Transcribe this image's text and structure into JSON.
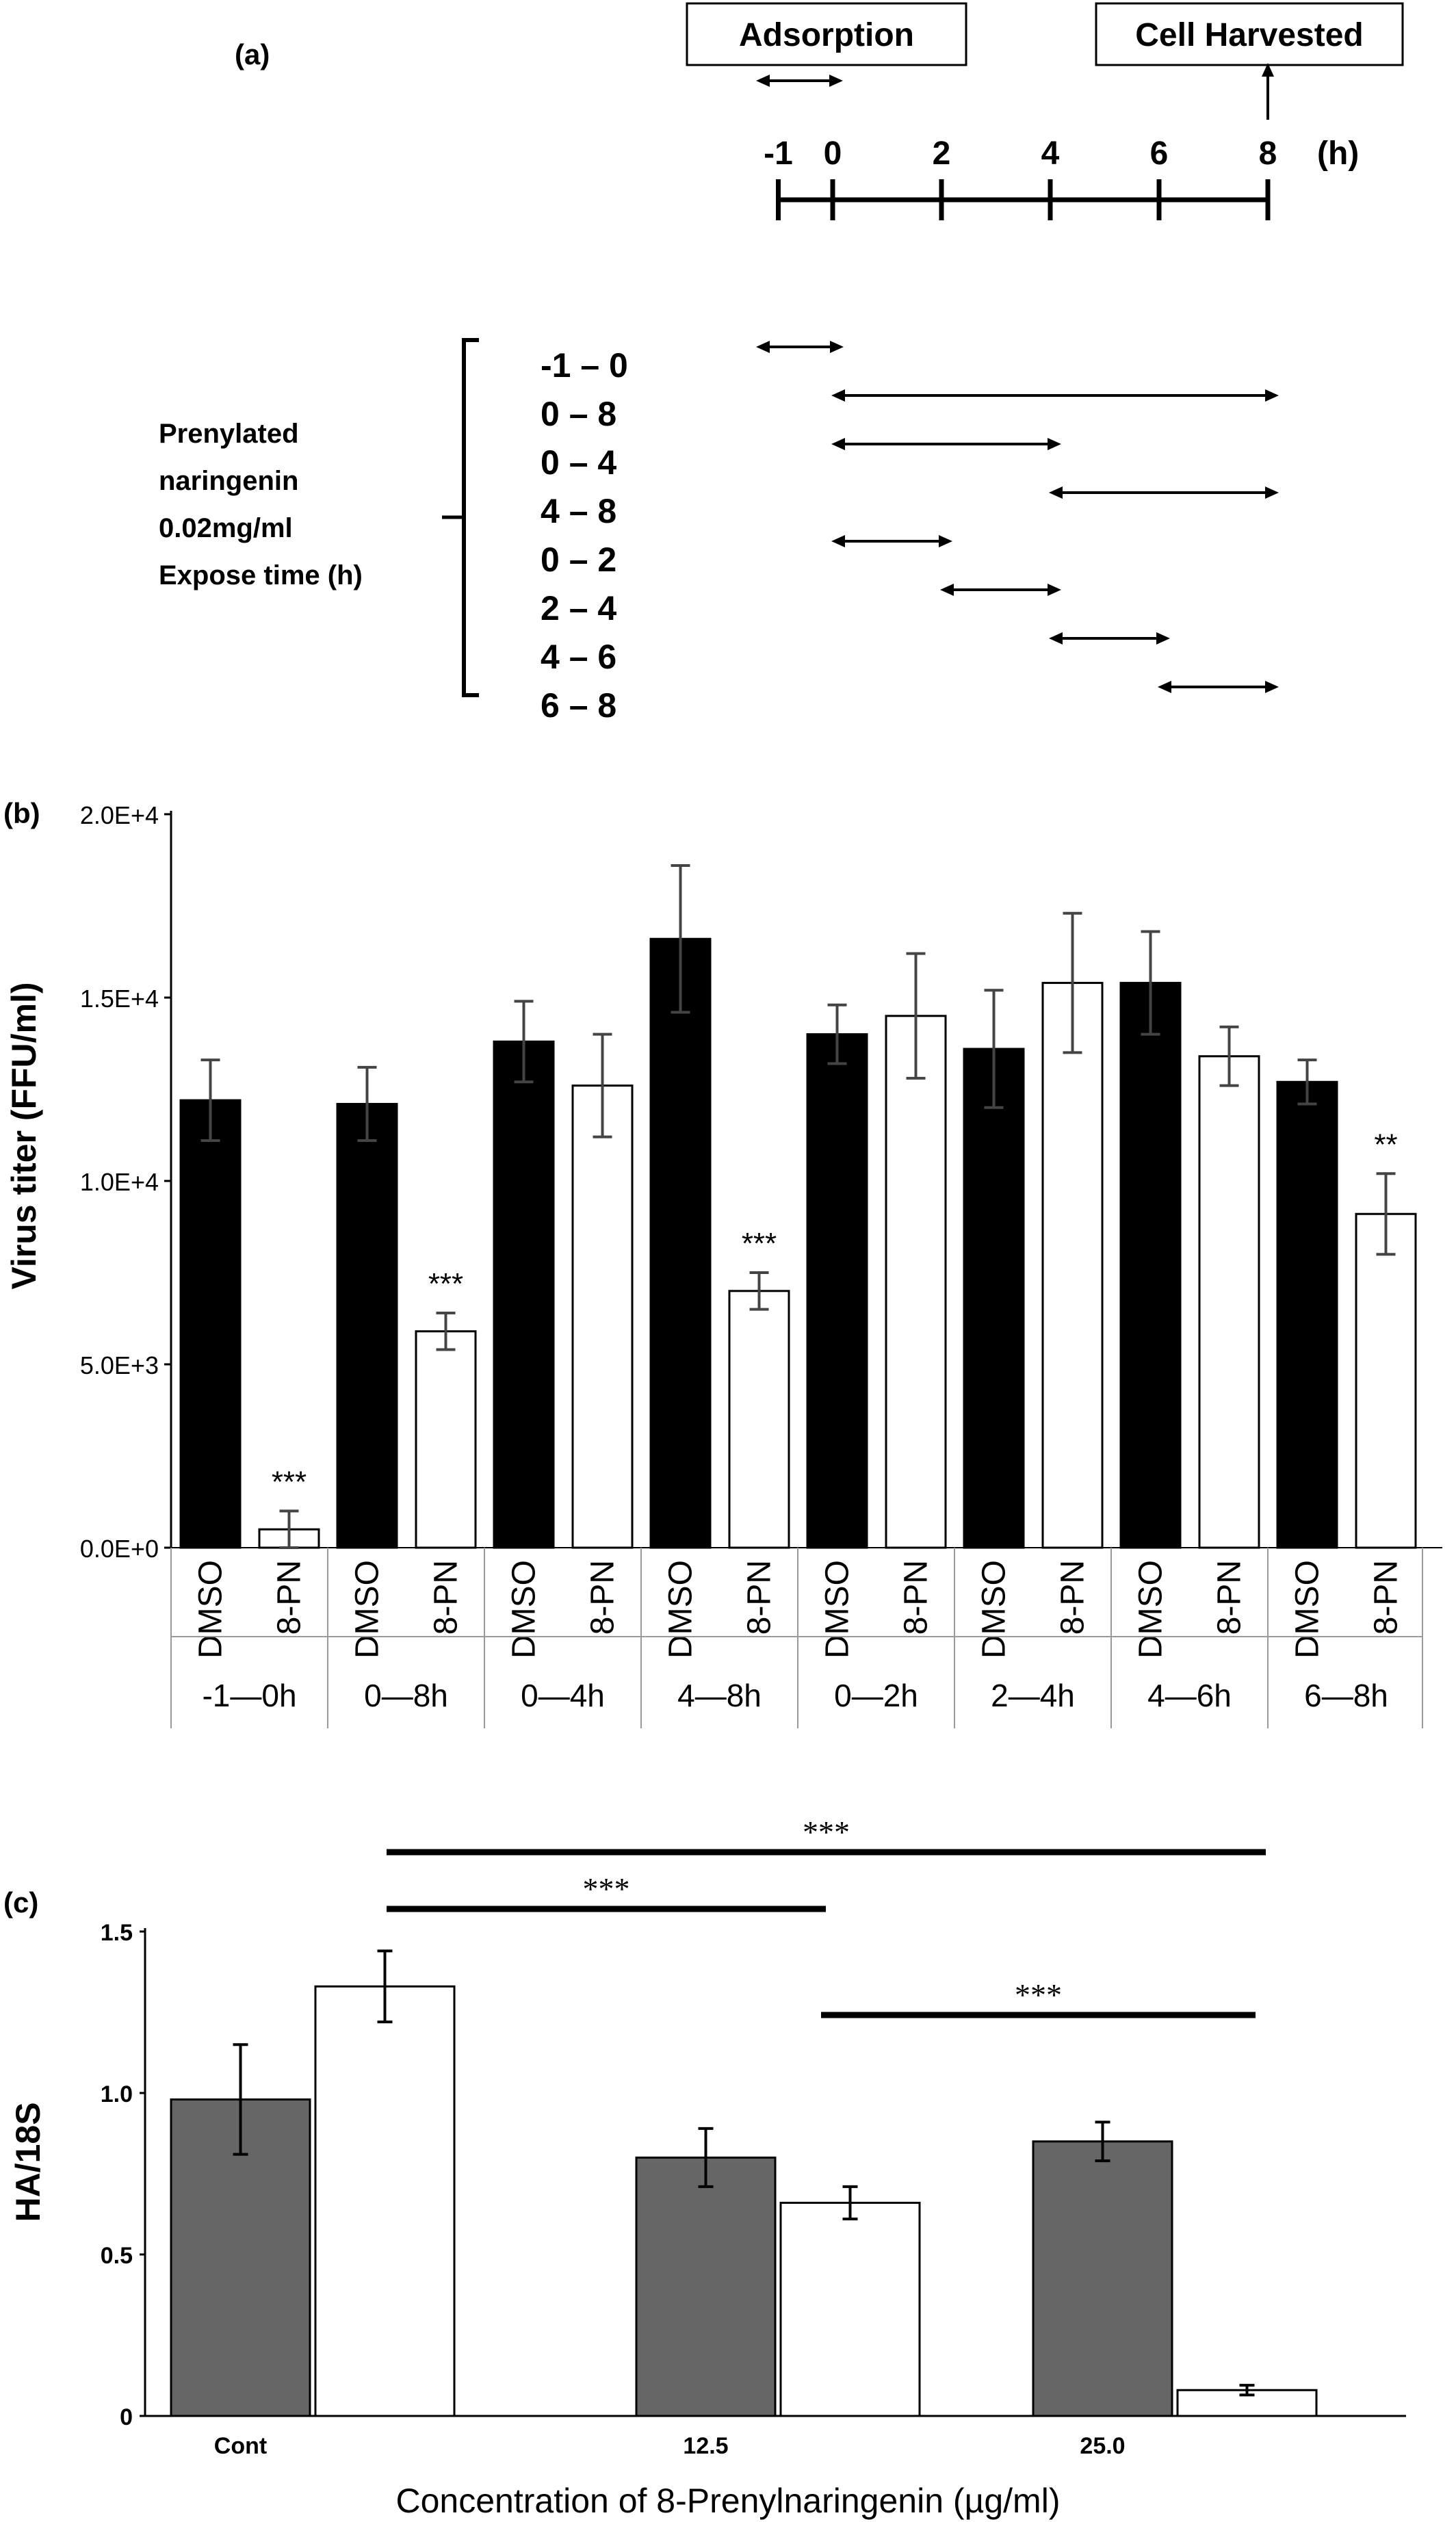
{
  "panel_a": {
    "label": "(a)",
    "adsorption_label": "Adsorption",
    "harvest_label": "Cell Harvested",
    "hour_unit": "(h)",
    "time_ticks": [
      "-1",
      "0",
      "2",
      "4",
      "6",
      "8"
    ],
    "treatment_label_lines": [
      "Prenylated",
      "naringenin",
      "0.02mg/ml",
      "Expose time (h)"
    ],
    "intervals": [
      {
        "label": "-1 – 0",
        "start": -1,
        "end": 0
      },
      {
        "label": "0 – 8",
        "start": 0,
        "end": 8
      },
      {
        "label": "0 – 4",
        "start": 0,
        "end": 4
      },
      {
        "label": "4 – 8",
        "start": 4,
        "end": 8
      },
      {
        "label": "0 – 2",
        "start": 0,
        "end": 2
      },
      {
        "label": "2 – 4",
        "start": 2,
        "end": 4
      },
      {
        "label": "4 – 6",
        "start": 4,
        "end": 6
      },
      {
        "label": "6 – 8",
        "start": 6,
        "end": 8
      }
    ]
  },
  "chart_data": [
    {
      "panel": "(b)",
      "type": "bar",
      "ylabel": "Virus titer (FFU/ml)",
      "ylim": [
        0,
        20000
      ],
      "yticks": [
        "0.0E+0",
        "5.0E+3",
        "1.0E+4",
        "1.5E+4",
        "2.0E+4"
      ],
      "legend": "none",
      "bar_labels": [
        "DMSO",
        "8-PN"
      ],
      "groups": [
        {
          "label": "-1—0h",
          "bars": [
            {
              "treatment": "DMSO",
              "value": 12200,
              "error": 1100,
              "sig": ""
            },
            {
              "treatment": "8-PN",
              "value": 500,
              "error": 500,
              "sig": "***"
            }
          ]
        },
        {
          "label": "0—8h",
          "bars": [
            {
              "treatment": "DMSO",
              "value": 12100,
              "error": 1000,
              "sig": ""
            },
            {
              "treatment": "8-PN",
              "value": 5900,
              "error": 500,
              "sig": "***"
            }
          ]
        },
        {
          "label": "0—4h",
          "bars": [
            {
              "treatment": "DMSO",
              "value": 13800,
              "error": 1100,
              "sig": ""
            },
            {
              "treatment": "8-PN",
              "value": 12600,
              "error": 1400,
              "sig": ""
            }
          ]
        },
        {
          "label": "4—8h",
          "bars": [
            {
              "treatment": "DMSO",
              "value": 16600,
              "error": 2000,
              "sig": ""
            },
            {
              "treatment": "8-PN",
              "value": 7000,
              "error": 500,
              "sig": "***"
            }
          ]
        },
        {
          "label": "0—2h",
          "bars": [
            {
              "treatment": "DMSO",
              "value": 14000,
              "error": 800,
              "sig": ""
            },
            {
              "treatment": "8-PN",
              "value": 14500,
              "error": 1700,
              "sig": ""
            }
          ]
        },
        {
          "label": "2—4h",
          "bars": [
            {
              "treatment": "DMSO",
              "value": 13600,
              "error": 1600,
              "sig": ""
            },
            {
              "treatment": "8-PN",
              "value": 15400,
              "error": 1900,
              "sig": ""
            }
          ]
        },
        {
          "label": "4—6h",
          "bars": [
            {
              "treatment": "DMSO",
              "value": 15400,
              "error": 1400,
              "sig": ""
            },
            {
              "treatment": "8-PN",
              "value": 13400,
              "error": 800,
              "sig": ""
            }
          ]
        },
        {
          "label": "6—8h",
          "bars": [
            {
              "treatment": "DMSO",
              "value": 12700,
              "error": 600,
              "sig": ""
            },
            {
              "treatment": "8-PN",
              "value": 9100,
              "error": 1100,
              "sig": "**"
            }
          ]
        }
      ],
      "colors": {
        "DMSO": "#000000",
        "8-PN": "#ffffff"
      }
    },
    {
      "panel": "(c)",
      "type": "bar",
      "ylabel": "HA/18S",
      "xlabel": "Concentration of 8-Prenylnaringenin (µg/ml)",
      "ylim": [
        0,
        1.5
      ],
      "yticks": [
        "0",
        "0.5",
        "1.0",
        "1.5"
      ],
      "legend": "none",
      "categories": [
        "Cont",
        "12.5",
        "25.0"
      ],
      "series": [
        {
          "values": [
            0.98,
            0.8,
            0.85
          ],
          "errors": [
            0.17,
            0.09,
            0.06
          ],
          "color": "#666666"
        },
        {
          "values": [
            1.33,
            0.66,
            0.08
          ],
          "errors": [
            0.11,
            0.05,
            0.015
          ],
          "color": "#ffffff"
        }
      ],
      "significance": [
        {
          "label": "***",
          "from": "Cont",
          "to": "25.0"
        },
        {
          "label": "***",
          "from": "Cont",
          "to": "12.5"
        },
        {
          "label": "***",
          "from": "12.5",
          "to": "25.0"
        }
      ]
    }
  ]
}
